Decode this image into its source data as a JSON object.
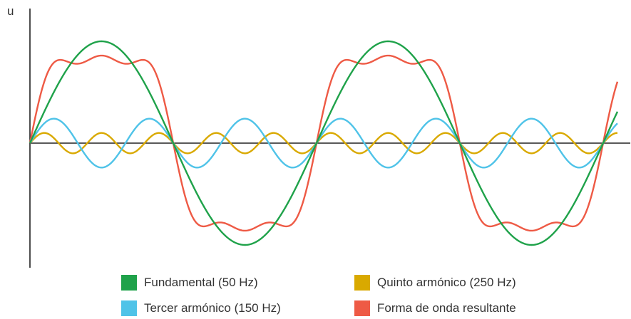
{
  "chart_data": {
    "type": "line",
    "ylabel": "u",
    "xlabel": "",
    "x_range": [
      0,
      4.1
    ],
    "ylim": [
      -1.0,
      1.0
    ],
    "grid": false,
    "legend_position": "bottom",
    "series": [
      {
        "name": "Fundamental (50 Hz)",
        "color": "#1fa24a",
        "harmonic": 1,
        "amplitude": 1.0
      },
      {
        "name": "Tercer armónico (150 Hz)",
        "color": "#4fc3e8",
        "harmonic": 3,
        "amplitude": 0.24
      },
      {
        "name": "Quinto armónico (250 Hz)",
        "color": "#d9a900",
        "harmonic": 5,
        "amplitude": 0.1
      },
      {
        "name": "Forma de onda resultante",
        "color": "#ee5a45",
        "harmonic": 0,
        "amplitude": 0
      }
    ]
  }
}
